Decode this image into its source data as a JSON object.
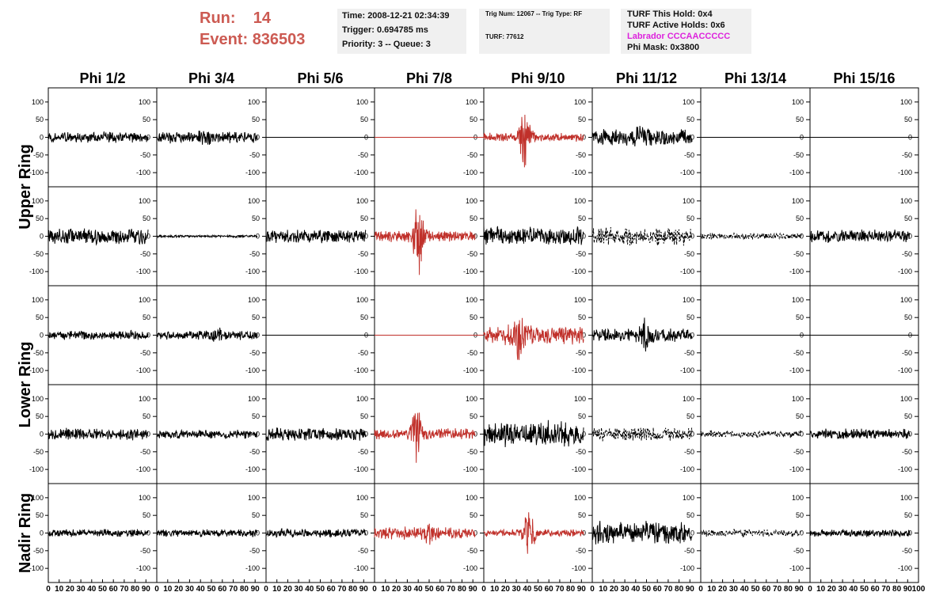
{
  "header": {
    "run_label": "Run:",
    "run_value": "14",
    "event_label": "Event:",
    "event_value": "836503",
    "time": "Time: 2008-12-21 02:34:39",
    "trigger": "Trigger: 0.694785 ms",
    "priority": "Priority: 3 -- Queue: 3",
    "trig_num": "Trig Num: 12067 -- Trig Type: RF",
    "turf": "TURF: 77612",
    "turf_this_hold": "TURF This Hold: 0x4",
    "turf_active_holds": "TURF Active Holds: 0x6",
    "labrador": "Labrador CCCAACCCCC",
    "phi_mask": "Phi Mask: 0x3800"
  },
  "colors": {
    "header_red": "#cc5a52",
    "labrador_magenta": "#dd22dd",
    "trace_black": "#000000",
    "trace_red": "#c0302a",
    "box_gray": "#f0f0f0"
  },
  "chart_data": {
    "type": "line",
    "column_titles": [
      "Phi 1/2",
      "Phi 3/4",
      "Phi 5/6",
      "Phi 7/8",
      "Phi 9/10",
      "Phi 11/12",
      "Phi 13/14",
      "Phi 15/16"
    ],
    "ring_labels": [
      "Upper Ring",
      "Lower Ring",
      "Nadir Ring"
    ],
    "ylim": [
      -140,
      140
    ],
    "yticks": [
      -100,
      -50,
      0,
      50,
      100
    ],
    "xlim": [
      0,
      100
    ],
    "xticks_label": [
      "0",
      "10",
      "20",
      "30",
      "40",
      "50",
      "60",
      "70",
      "80",
      "90",
      "100"
    ],
    "panels": [
      [
        {
          "style": "solid",
          "color": "black",
          "amp": 18,
          "peak": null,
          "len": 92
        },
        {
          "style": "solid",
          "color": "black",
          "amp": 18,
          "peak": 45,
          "peak_amp": 35,
          "len": 92
        },
        {
          "style": "flat",
          "color": "black"
        },
        {
          "style": "flat",
          "color": "red"
        },
        {
          "style": "solid",
          "color": "red",
          "amp": 14,
          "peak": 38,
          "peak_amp": 100,
          "len": 92
        },
        {
          "style": "solid",
          "color": "black",
          "amp": 26,
          "peak": 45,
          "peak_amp": 45,
          "len": 92
        },
        {
          "style": "flat",
          "color": "black"
        },
        {
          "style": "flat",
          "color": "black"
        }
      ],
      [
        {
          "style": "solid",
          "color": "black",
          "amp": 25,
          "peak": null,
          "len": 92
        },
        {
          "style": "solid",
          "color": "black",
          "amp": 4,
          "peak": null,
          "len": 92
        },
        {
          "style": "solid",
          "color": "black",
          "amp": 22,
          "peak": null,
          "len": 92
        },
        {
          "style": "solid",
          "color": "red",
          "amp": 18,
          "peak": 40,
          "peak_amp": 125,
          "len": 92
        },
        {
          "style": "solid",
          "color": "black",
          "amp": 30,
          "peak": null,
          "len": 92
        },
        {
          "style": "dashed",
          "color": "black",
          "amp": 28,
          "peak": null,
          "len": 92
        },
        {
          "style": "dashed",
          "color": "black",
          "amp": 10,
          "peak": null,
          "len": 92
        },
        {
          "style": "solid",
          "color": "black",
          "amp": 20,
          "peak": null,
          "len": 92
        }
      ],
      [
        {
          "style": "solid",
          "color": "black",
          "amp": 15,
          "peak": null,
          "len": 92
        },
        {
          "style": "solid",
          "color": "black",
          "amp": 15,
          "peak": 55,
          "peak_amp": 30,
          "len": 92
        },
        {
          "style": "flat",
          "color": "black"
        },
        {
          "style": "flat",
          "color": "red"
        },
        {
          "style": "solid",
          "color": "red",
          "amp": 30,
          "peak": 33,
          "peak_amp": 85,
          "len": 92
        },
        {
          "style": "solid",
          "color": "black",
          "amp": 20,
          "peak": 50,
          "peak_amp": 75,
          "len": 92
        },
        {
          "style": "flat",
          "color": "black"
        },
        {
          "style": "flat",
          "color": "black"
        }
      ],
      [
        {
          "style": "solid",
          "color": "black",
          "amp": 18,
          "peak": null,
          "len": 92
        },
        {
          "style": "solid",
          "color": "black",
          "amp": 14,
          "peak": null,
          "len": 92
        },
        {
          "style": "solid",
          "color": "black",
          "amp": 20,
          "peak": null,
          "len": 92
        },
        {
          "style": "solid",
          "color": "red",
          "amp": 18,
          "peak": 38,
          "peak_amp": 120,
          "len": 92
        },
        {
          "style": "solid",
          "color": "black",
          "amp": 40,
          "peak": null,
          "len": 92
        },
        {
          "style": "dashed",
          "color": "black",
          "amp": 22,
          "peak": null,
          "len": 92
        },
        {
          "style": "dashed",
          "color": "black",
          "amp": 12,
          "peak": null,
          "len": 92
        },
        {
          "style": "solid",
          "color": "black",
          "amp": 16,
          "peak": null,
          "len": 92
        }
      ],
      [
        {
          "style": "solid",
          "color": "black",
          "amp": 12,
          "peak": null,
          "len": 92
        },
        {
          "style": "solid",
          "color": "black",
          "amp": 12,
          "peak": null,
          "len": 92
        },
        {
          "style": "solid",
          "color": "black",
          "amp": 13,
          "peak": null,
          "len": 92
        },
        {
          "style": "solid",
          "color": "red",
          "amp": 20,
          "peak": 50,
          "peak_amp": 40,
          "len": 92
        },
        {
          "style": "solid",
          "color": "red",
          "amp": 12,
          "peak": 42,
          "peak_amp": 85,
          "len": 92
        },
        {
          "style": "solid",
          "color": "black",
          "amp": 35,
          "peak": null,
          "len": 92
        },
        {
          "style": "dashed",
          "color": "black",
          "amp": 12,
          "peak": null,
          "len": 92
        },
        {
          "style": "solid",
          "color": "black",
          "amp": 12,
          "peak": null,
          "len": 92
        }
      ]
    ]
  }
}
